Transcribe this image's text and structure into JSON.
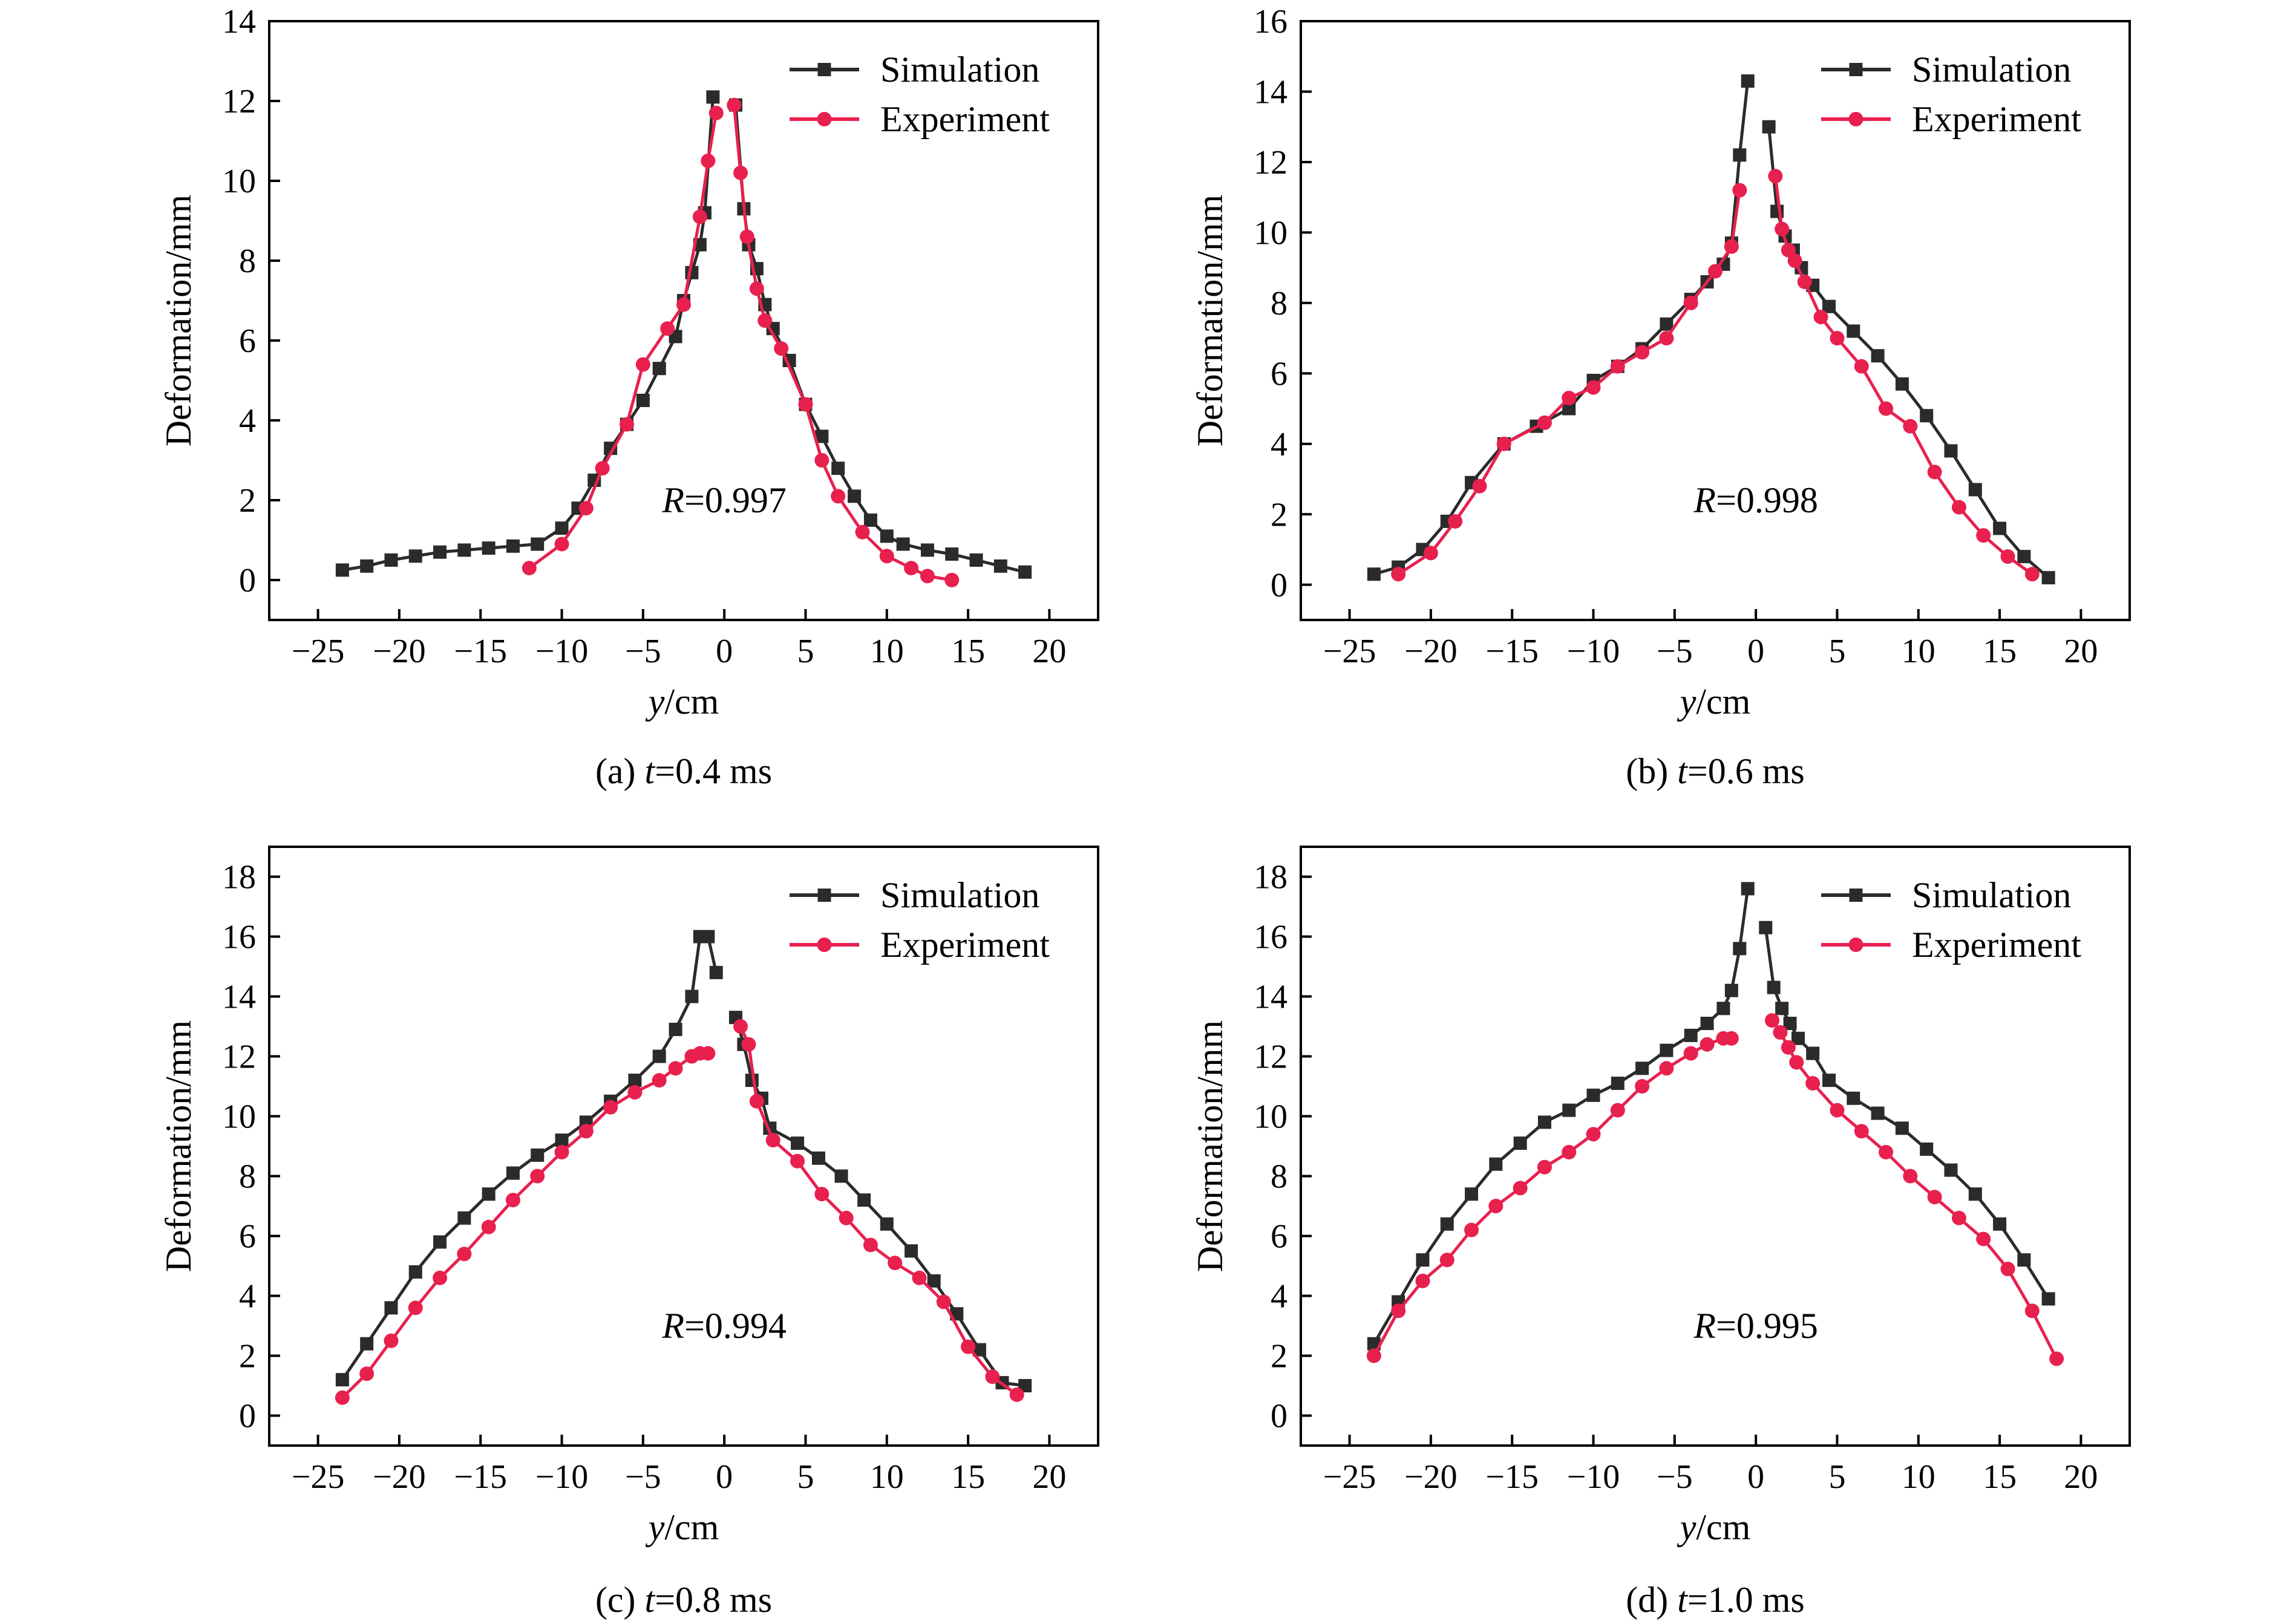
{
  "colors": {
    "simulation": "#2b2b2b",
    "experiment": "#e8204e",
    "frame": "#000000"
  },
  "chart_data": [
    {
      "type": "line",
      "caption": {
        "prefix": "(a) ",
        "var": "t",
        "rest": "=0.4 ms"
      },
      "xlabel": {
        "var": "y",
        "rest": "/cm"
      },
      "ylabel": "Deformation/mm",
      "xlim": [
        -28,
        23
      ],
      "ylim": [
        -1,
        14
      ],
      "xticks": [
        -25,
        -20,
        -15,
        -10,
        -5,
        0,
        5,
        10,
        15,
        20
      ],
      "yticks": [
        0,
        2,
        4,
        6,
        8,
        10,
        12,
        14
      ],
      "R": {
        "var": "R",
        "rest": "=0.997"
      },
      "legend": "top-right",
      "series": [
        {
          "name": "Simulation",
          "marker": "square",
          "color": "#2b2b2b",
          "x": [
            -23.5,
            -22,
            -20.5,
            -19,
            -17.5,
            -16,
            -14.5,
            -13,
            -11.5,
            -10,
            -9,
            -8,
            -7,
            -6,
            -5,
            -4,
            -3,
            -2.5,
            -2,
            -1.5,
            -1.2,
            -0.7,
            0.7,
            1.2,
            1.5,
            2,
            2.5,
            3,
            4,
            5,
            6,
            7,
            8,
            9,
            10,
            11,
            12.5,
            14,
            15.5,
            17,
            18.5
          ],
          "y": [
            0.25,
            0.35,
            0.5,
            0.6,
            0.7,
            0.75,
            0.8,
            0.85,
            0.9,
            1.3,
            1.8,
            2.5,
            3.3,
            3.9,
            4.5,
            5.3,
            6.1,
            7.0,
            7.7,
            8.4,
            9.2,
            12.1,
            11.9,
            9.3,
            8.4,
            7.8,
            6.9,
            6.3,
            5.5,
            4.4,
            3.6,
            2.8,
            2.1,
            1.5,
            1.1,
            0.9,
            0.75,
            0.65,
            0.5,
            0.35,
            0.2
          ]
        },
        {
          "name": "Experiment",
          "marker": "circle",
          "color": "#e8204e",
          "x": [
            -12,
            -10,
            -8.5,
            -7.5,
            -6,
            -5,
            -3.5,
            -2.5,
            -1.5,
            -1,
            -0.5,
            0.6,
            1.0,
            1.4,
            2.0,
            2.5,
            3.5,
            5.0,
            6.0,
            7.0,
            8.5,
            10.0,
            11.5,
            12.5,
            14
          ],
          "y": [
            0.3,
            0.9,
            1.8,
            2.8,
            3.9,
            5.4,
            6.3,
            6.9,
            9.1,
            10.5,
            11.7,
            11.9,
            10.2,
            8.6,
            7.3,
            6.5,
            5.8,
            4.4,
            3.0,
            2.1,
            1.2,
            0.6,
            0.3,
            0.1,
            0.0
          ]
        }
      ]
    },
    {
      "type": "line",
      "caption": {
        "prefix": "(b) ",
        "var": "t",
        "rest": "=0.6 ms"
      },
      "xlabel": {
        "var": "y",
        "rest": "/cm"
      },
      "ylabel": "Deformation/mm",
      "xlim": [
        -28,
        23
      ],
      "ylim": [
        -1,
        16
      ],
      "xticks": [
        -25,
        -20,
        -15,
        -10,
        -5,
        0,
        5,
        10,
        15,
        20
      ],
      "yticks": [
        0,
        2,
        4,
        6,
        8,
        10,
        12,
        14,
        16
      ],
      "R": {
        "var": "R",
        "rest": "=0.998"
      },
      "legend": "top-right",
      "series": [
        {
          "name": "Simulation",
          "marker": "square",
          "color": "#2b2b2b",
          "x": [
            -23.5,
            -22,
            -20.5,
            -19,
            -17.5,
            -15.5,
            -13.5,
            -11.5,
            -10,
            -8.5,
            -7,
            -5.5,
            -4,
            -3,
            -2,
            -1.5,
            -1,
            -0.5,
            0.8,
            1.3,
            1.8,
            2.3,
            2.8,
            3.5,
            4.5,
            6,
            7.5,
            9,
            10.5,
            12,
            13.5,
            15,
            16.5,
            18
          ],
          "y": [
            0.3,
            0.5,
            1.0,
            1.8,
            2.9,
            4.0,
            4.5,
            5.0,
            5.8,
            6.2,
            6.7,
            7.4,
            8.1,
            8.6,
            9.1,
            9.7,
            12.2,
            14.3,
            13.0,
            10.6,
            9.9,
            9.5,
            9.0,
            8.5,
            7.9,
            7.2,
            6.5,
            5.7,
            4.8,
            3.8,
            2.7,
            1.6,
            0.8,
            0.2
          ]
        },
        {
          "name": "Experiment",
          "marker": "circle",
          "color": "#e8204e",
          "x": [
            -22,
            -20,
            -18.5,
            -17,
            -15.5,
            -13,
            -11.5,
            -10,
            -8.5,
            -7,
            -5.5,
            -4,
            -2.5,
            -1.5,
            -1,
            1.2,
            1.6,
            2.0,
            2.4,
            3,
            4,
            5,
            6.5,
            8,
            9.5,
            11,
            12.5,
            14,
            15.5,
            17
          ],
          "y": [
            0.3,
            0.9,
            1.8,
            2.8,
            4.0,
            4.6,
            5.3,
            5.6,
            6.2,
            6.6,
            7.0,
            8.0,
            8.9,
            9.6,
            11.2,
            11.6,
            10.1,
            9.5,
            9.2,
            8.6,
            7.6,
            7.0,
            6.2,
            5.0,
            4.5,
            3.2,
            2.2,
            1.4,
            0.8,
            0.3
          ]
        }
      ]
    },
    {
      "type": "line",
      "caption": {
        "prefix": "(c) ",
        "var": "t",
        "rest": "=0.8 ms"
      },
      "xlabel": {
        "var": "y",
        "rest": "/cm"
      },
      "ylabel": "Deformation/mm",
      "xlim": [
        -28,
        23
      ],
      "ylim": [
        -1,
        19
      ],
      "xticks": [
        -25,
        -20,
        -15,
        -10,
        -5,
        0,
        5,
        10,
        15,
        20
      ],
      "yticks": [
        0,
        2,
        4,
        6,
        8,
        10,
        12,
        14,
        16,
        18
      ],
      "R": {
        "var": "R",
        "rest": "=0.994"
      },
      "legend": "top-right",
      "series": [
        {
          "name": "Simulation",
          "marker": "square",
          "color": "#2b2b2b",
          "x": [
            -23.5,
            -22,
            -20.5,
            -19,
            -17.5,
            -16,
            -14.5,
            -13,
            -11.5,
            -10,
            -8.5,
            -7,
            -5.5,
            -4,
            -3,
            -2,
            -1.5,
            -1,
            -0.5,
            0.7,
            1.2,
            1.7,
            2.3,
            2.8,
            4.5,
            5.8,
            7.2,
            8.6,
            10,
            11.5,
            12.9,
            14.3,
            15.7,
            17.1,
            18.5
          ],
          "y": [
            1.2,
            2.4,
            3.6,
            4.8,
            5.8,
            6.6,
            7.4,
            8.1,
            8.7,
            9.2,
            9.8,
            10.5,
            11.2,
            12.0,
            12.9,
            14.0,
            16.0,
            16.0,
            14.8,
            13.3,
            12.4,
            11.2,
            10.6,
            9.6,
            9.1,
            8.6,
            8.0,
            7.2,
            6.4,
            5.5,
            4.5,
            3.4,
            2.2,
            1.1,
            1.0
          ]
        },
        {
          "name": "Experiment",
          "marker": "circle",
          "color": "#e8204e",
          "x": [
            -23.5,
            -22,
            -20.5,
            -19,
            -17.5,
            -16,
            -14.5,
            -13,
            -11.5,
            -10,
            -8.5,
            -7,
            -5.5,
            -4,
            -3,
            -2,
            -1.5,
            -1,
            1.0,
            1.5,
            2.0,
            3,
            4.5,
            6,
            7.5,
            9,
            10.5,
            12,
            13.5,
            15,
            16.5,
            18
          ],
          "y": [
            0.6,
            1.4,
            2.5,
            3.6,
            4.6,
            5.4,
            6.3,
            7.2,
            8.0,
            8.8,
            9.5,
            10.3,
            10.8,
            11.2,
            11.6,
            12.0,
            12.1,
            12.1,
            13.0,
            12.4,
            10.5,
            9.2,
            8.5,
            7.4,
            6.6,
            5.7,
            5.1,
            4.6,
            3.8,
            2.3,
            1.3,
            0.7
          ]
        }
      ]
    },
    {
      "type": "line",
      "caption": {
        "prefix": "(d) ",
        "var": "t",
        "rest": "=1.0 ms"
      },
      "xlabel": {
        "var": "y",
        "rest": "/cm"
      },
      "ylabel": "Deformation/mm",
      "xlim": [
        -28,
        23
      ],
      "ylim": [
        -1,
        19
      ],
      "xticks": [
        -25,
        -20,
        -15,
        -10,
        -5,
        0,
        5,
        10,
        15,
        20
      ],
      "yticks": [
        0,
        2,
        4,
        6,
        8,
        10,
        12,
        14,
        16,
        18
      ],
      "R": {
        "var": "R",
        "rest": "=0.995"
      },
      "legend": "top-right",
      "series": [
        {
          "name": "Simulation",
          "marker": "square",
          "color": "#2b2b2b",
          "x": [
            -23.5,
            -22,
            -20.5,
            -19,
            -17.5,
            -16,
            -14.5,
            -13,
            -11.5,
            -10,
            -8.5,
            -7,
            -5.5,
            -4,
            -3,
            -2,
            -1.5,
            -1,
            -0.5,
            0.6,
            1.1,
            1.6,
            2.1,
            2.6,
            3.5,
            4.5,
            6,
            7.5,
            9,
            10.5,
            12,
            13.5,
            15,
            16.5,
            18
          ],
          "y": [
            2.4,
            3.8,
            5.2,
            6.4,
            7.4,
            8.4,
            9.1,
            9.8,
            10.2,
            10.7,
            11.1,
            11.6,
            12.2,
            12.7,
            13.1,
            13.6,
            14.2,
            15.6,
            17.6,
            16.3,
            14.3,
            13.6,
            13.1,
            12.6,
            12.1,
            11.2,
            10.6,
            10.1,
            9.6,
            8.9,
            8.2,
            7.4,
            6.4,
            5.2,
            3.9
          ]
        },
        {
          "name": "Experiment",
          "marker": "circle",
          "color": "#e8204e",
          "x": [
            -23.5,
            -22,
            -20.5,
            -19,
            -17.5,
            -16,
            -14.5,
            -13,
            -11.5,
            -10,
            -8.5,
            -7,
            -5.5,
            -4,
            -3,
            -2,
            -1.5,
            1.0,
            1.5,
            2.0,
            2.5,
            3.5,
            5,
            6.5,
            8,
            9.5,
            11,
            12.5,
            14,
            15.5,
            17,
            18.5
          ],
          "y": [
            2.0,
            3.5,
            4.5,
            5.2,
            6.2,
            7.0,
            7.6,
            8.3,
            8.8,
            9.4,
            10.2,
            11.0,
            11.6,
            12.1,
            12.4,
            12.6,
            12.6,
            13.2,
            12.8,
            12.3,
            11.8,
            11.1,
            10.2,
            9.5,
            8.8,
            8.0,
            7.3,
            6.6,
            5.9,
            4.9,
            3.5,
            1.9
          ]
        }
      ]
    }
  ]
}
